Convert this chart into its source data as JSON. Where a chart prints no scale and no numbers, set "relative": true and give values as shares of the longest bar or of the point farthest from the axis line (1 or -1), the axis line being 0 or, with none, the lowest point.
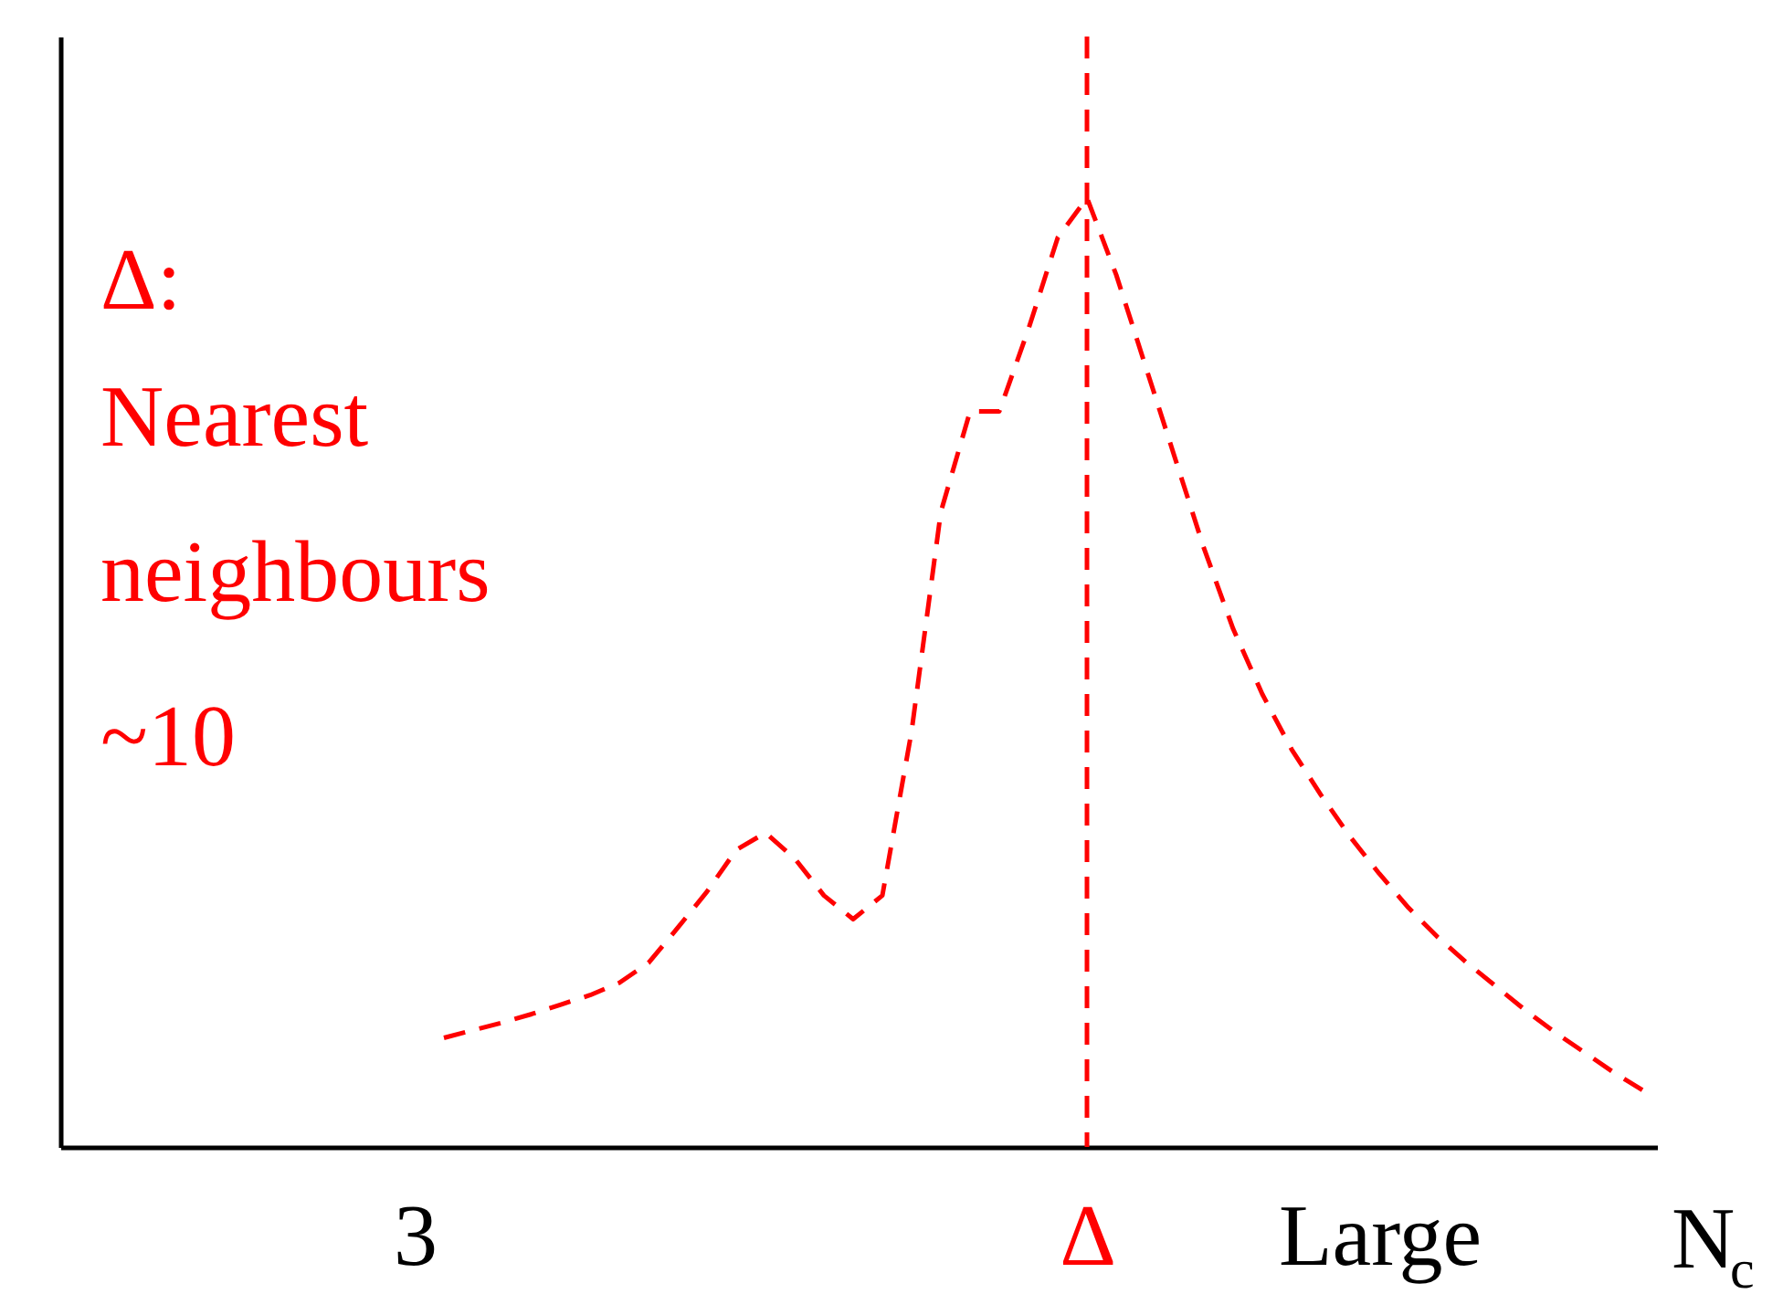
{
  "chart_data": {
    "type": "line",
    "relative": true,
    "categories": [
      "3",
      null,
      null,
      null,
      null,
      null,
      null,
      null,
      null,
      null,
      null,
      null,
      null,
      null,
      null,
      null,
      null,
      null,
      null,
      null,
      null,
      null,
      null,
      "Δ",
      null,
      null,
      null,
      null,
      null,
      null,
      null,
      null,
      null,
      "Large",
      null,
      null,
      null,
      null,
      null,
      null,
      null,
      null,
      null
    ],
    "series": [
      {
        "color": "#ff0000",
        "values": [
          null,
          0.115,
          0.123,
          0.131,
          0.14,
          0.15,
          0.16,
          0.173,
          0.194,
          0.231,
          0.269,
          0.313,
          0.331,
          0.304,
          0.265,
          0.24,
          0.265,
          0.438,
          0.669,
          0.775,
          0.775,
          0.862,
          0.958,
          1.0,
          0.919,
          0.823,
          0.727,
          0.631,
          0.546,
          0.477,
          0.419,
          0.371,
          0.327,
          0.288,
          0.252,
          0.221,
          0.194,
          0.169,
          0.144,
          0.121,
          0.1,
          0.079,
          0.06
        ]
      }
    ],
    "xlabel": "N$_{c}$",
    "annotations": [
      "Δ:",
      "Nearest",
      "neighbours",
      "~10"
    ],
    "ref_lines": [
      {
        "axis": "x",
        "value": "Δ",
        "color": "#ff0000",
        "line_style": "dashed"
      }
    ],
    "line_style": "dashed",
    "marker": "none",
    "grid": false
  }
}
